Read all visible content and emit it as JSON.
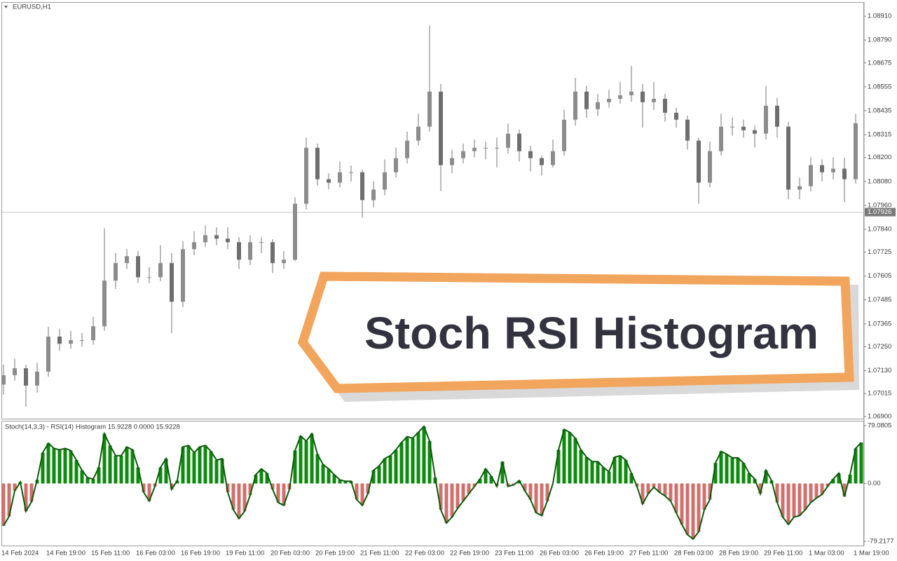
{
  "chart_data": [
    {
      "type": "candlestick",
      "title": "EURUSD,H1",
      "annotation": "Stoch RSI Histogram",
      "categories": [
        "14 Feb 2024",
        null,
        null,
        null,
        "14 Feb 19:00",
        null,
        null,
        null,
        "15 Feb 11:00",
        null,
        null,
        null,
        "16 Feb 03:00",
        null,
        null,
        null,
        "16 Feb 19:00",
        null,
        null,
        null,
        "19 Feb 11:00",
        null,
        null,
        null,
        "20 Feb 03:00",
        null,
        null,
        null,
        "20 Feb 19:00",
        null,
        null,
        null,
        "21 Feb 11:00",
        null,
        null,
        null,
        "22 Feb 03:00",
        null,
        null,
        null,
        "22 Feb 19:00",
        null,
        null,
        null,
        "23 Feb 11:00",
        null,
        null,
        null,
        "26 Feb 03:00",
        null,
        null,
        null,
        "26 Feb 19:00",
        null,
        null,
        null,
        "27 Feb 11:00",
        null,
        null,
        null,
        "28 Feb 03:00",
        null,
        null,
        null,
        "28 Feb 19:00",
        null,
        null,
        null,
        "29 Feb 11:00",
        null,
        null,
        null,
        "1 Mar 03:00",
        null,
        null,
        null,
        "1 Mar 19:00"
      ],
      "open": [
        1.0706,
        1.07107,
        1.07142,
        1.07055,
        1.07125,
        1.07301,
        1.07265,
        1.07283,
        1.07283,
        1.07353,
        1.07582,
        1.0767,
        1.07705,
        1.07599,
        1.07599,
        1.0767,
        1.07476,
        1.0774,
        1.07775,
        1.0781,
        1.07793,
        1.07775,
        1.07687,
        1.07775,
        1.07775,
        1.0767,
        1.07687,
        1.07968,
        1.08249,
        1.08091,
        1.08074,
        1.08126,
        1.08126,
        1.07986,
        1.08039,
        1.08126,
        1.08197,
        1.08285,
        1.08355,
        1.08531,
        1.08162,
        1.08197,
        1.08232,
        1.08249,
        1.08249,
        1.08249,
        1.0832,
        1.08232,
        1.08197,
        1.08162,
        1.08232,
        1.0839,
        1.08531,
        1.08443,
        1.08478,
        1.08495,
        1.08513,
        1.08531,
        1.08478,
        1.08495,
        1.08425,
        1.0839,
        1.08285,
        1.08074,
        1.08232,
        1.08355,
        1.08355,
        1.08337,
        1.0832,
        1.0846,
        1.08355,
        1.08039,
        1.08056,
        1.08162,
        1.08126,
        1.08144,
        1.08091
      ],
      "high": [
        1.0716,
        1.0719,
        1.0716,
        1.0717,
        1.0735,
        1.0734,
        1.0733,
        1.0732,
        1.074,
        1.07845,
        1.0772,
        1.0774,
        1.0773,
        1.0765,
        1.0776,
        1.0772,
        1.0778,
        1.0783,
        1.0786,
        1.0785,
        1.0785,
        1.078,
        1.0781,
        1.078,
        1.0779,
        1.0773,
        1.08,
        1.083,
        1.0827,
        1.0812,
        1.0818,
        1.0816,
        1.0814,
        1.0808,
        1.0819,
        1.0825,
        1.0833,
        1.0842,
        1.08864,
        1.0857,
        1.0824,
        1.0827,
        1.0829,
        1.0828,
        1.083,
        1.0837,
        1.0834,
        1.0826,
        1.0821,
        1.0829,
        1.0844,
        1.086,
        1.0856,
        1.0852,
        1.0854,
        1.0858,
        1.0866,
        1.0857,
        1.0858,
        1.0852,
        1.0845,
        1.0841,
        1.083,
        1.0828,
        1.0842,
        1.084,
        1.0839,
        1.0836,
        1.0856,
        1.085,
        1.0838,
        1.081,
        1.082,
        1.0819,
        1.082,
        1.082,
        1.0842
      ],
      "low": [
        1.0701,
        1.0708,
        1.06949,
        1.0702,
        1.071,
        1.0723,
        1.0724,
        1.0725,
        1.0726,
        1.0733,
        1.0754,
        1.0764,
        1.0757,
        1.0757,
        1.0758,
        1.07318,
        1.0745,
        1.0771,
        1.0775,
        1.0776,
        1.0774,
        1.0764,
        1.0766,
        1.0772,
        1.0762,
        1.0764,
        1.0768,
        1.0794,
        1.0806,
        1.0804,
        1.0805,
        1.0808,
        1.07898,
        1.0795,
        1.0801,
        1.081,
        1.0817,
        1.0826,
        1.0833,
        1.08031,
        1.0812,
        1.0817,
        1.082,
        1.0819,
        1.0815,
        1.0822,
        1.0818,
        1.0813,
        1.0811,
        1.0815,
        1.0821,
        1.0836,
        1.084,
        1.0841,
        1.0845,
        1.0847,
        1.0848,
        1.0835,
        1.0844,
        1.0838,
        1.0835,
        1.0824,
        1.07968,
        1.0805,
        1.0821,
        1.0831,
        1.083,
        1.0825,
        1.0829,
        1.083,
        1.0799,
        1.0799,
        1.0803,
        1.0808,
        1.0809,
        1.07975,
        1.0807
      ],
      "close": [
        1.07107,
        1.07142,
        1.07055,
        1.07125,
        1.07301,
        1.07265,
        1.07283,
        1.07283,
        1.07353,
        1.07582,
        1.0767,
        1.07705,
        1.07599,
        1.07599,
        1.0767,
        1.07476,
        1.0774,
        1.07775,
        1.0781,
        1.07793,
        1.07775,
        1.07687,
        1.07775,
        1.07775,
        1.0767,
        1.07687,
        1.07968,
        1.08249,
        1.08091,
        1.08074,
        1.08126,
        1.08126,
        1.07986,
        1.08039,
        1.08126,
        1.08197,
        1.08285,
        1.08355,
        1.08531,
        1.08162,
        1.08197,
        1.08232,
        1.08249,
        1.08249,
        1.08249,
        1.0832,
        1.08232,
        1.08197,
        1.08162,
        1.08232,
        1.0839,
        1.08531,
        1.08443,
        1.08478,
        1.08495,
        1.08513,
        1.08531,
        1.08478,
        1.08495,
        1.08425,
        1.0839,
        1.08285,
        1.08074,
        1.08232,
        1.08355,
        1.08355,
        1.08337,
        1.0832,
        1.0846,
        1.08355,
        1.08039,
        1.08056,
        1.08162,
        1.08126,
        1.08144,
        1.08091,
        1.08372
      ],
      "color": "#8c8c8c",
      "last_price": 1.07926,
      "ylim": [
        1.06889,
        1.08977
      ],
      "yticks": [
        {
          "value": 1.0891,
          "label": "1.08910"
        },
        {
          "value": 1.0879,
          "label": "1.08790"
        },
        1.08675,
        1.08555,
        1.08435,
        1.08315,
        {
          "value": 1.082,
          "label": "1.08200"
        },
        {
          "value": 1.0808,
          "label": "1.08080"
        },
        {
          "value": 1.0796,
          "label": "1.07960"
        },
        {
          "value": 1.0784,
          "label": "1.07840"
        },
        1.07725,
        1.07605,
        1.07485,
        1.07365,
        {
          "value": 1.0725,
          "label": "1.07250"
        },
        {
          "value": 1.0713,
          "label": "1.07130"
        },
        1.07015,
        {
          "value": 1.069,
          "label": "1.06900"
        }
      ]
    },
    {
      "type": "bar",
      "title": "Stoch(14,3,3) - RSI(14) Histogram 15.9228 0.0000 15.9228",
      "values": [
        -58,
        -45,
        -10,
        2,
        -38,
        -25,
        5,
        42,
        55,
        48,
        46,
        48,
        45,
        32,
        18,
        8,
        6,
        22,
        68,
        52,
        38,
        38,
        50,
        46,
        22,
        -12,
        -24,
        -4,
        22,
        34,
        -8,
        4,
        50,
        52,
        42,
        50,
        52,
        44,
        32,
        34,
        -12,
        -36,
        -48,
        -38,
        -16,
        12,
        20,
        14,
        -8,
        -26,
        -30,
        -8,
        45,
        65,
        58,
        68,
        40,
        26,
        20,
        12,
        5,
        3,
        3,
        -22,
        -30,
        -14,
        18,
        24,
        34,
        38,
        46,
        56,
        64,
        62,
        70,
        78,
        58,
        8,
        -36,
        -54,
        -46,
        -34,
        -24,
        -14,
        -4,
        6,
        20,
        10,
        -4,
        30,
        -4,
        -2,
        4,
        -10,
        -22,
        -40,
        -44,
        -24,
        0,
        46,
        74,
        70,
        62,
        46,
        36,
        30,
        30,
        22,
        16,
        36,
        38,
        32,
        14,
        -4,
        -28,
        -14,
        -5,
        -12,
        -17,
        -24,
        -40,
        -56,
        -70,
        -76,
        -66,
        -36,
        -22,
        28,
        44,
        40,
        35,
        35,
        28,
        14,
        6,
        -14,
        18,
        4,
        -26,
        -46,
        -56,
        -46,
        -44,
        -36,
        -26,
        -20,
        -15,
        -4,
        6,
        14,
        -18,
        12,
        48,
        56
      ],
      "positive_color": "#0e8a0e",
      "negative_color": "#d0706c",
      "line_color": "#0b5a0b",
      "ylim": [
        -84.9,
        84.8
      ],
      "yticks": [
        -79.2177,
        {
          "value": 0,
          "label": "0.00"
        },
        79.0805
      ]
    }
  ]
}
